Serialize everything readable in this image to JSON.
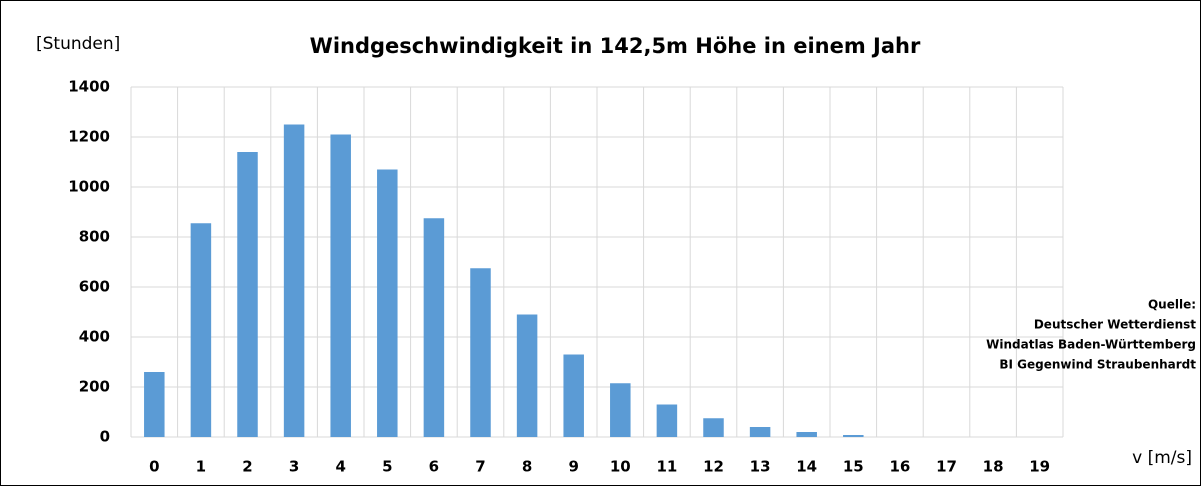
{
  "chart_data": {
    "type": "bar",
    "title": "Windgeschwindigkeit in 142,5m Höhe in einem Jahr",
    "y_label": "[Stunden]",
    "x_label": "v [m/s]",
    "annotations": [
      "Quelle:",
      "Deutscher Wetterdienst",
      "Windatlas Baden-Württemberg",
      "BI Gegenwind Straubenhardt"
    ],
    "categories": [
      "0",
      "1",
      "2",
      "3",
      "4",
      "5",
      "6",
      "7",
      "8",
      "9",
      "10",
      "11",
      "12",
      "13",
      "14",
      "15",
      "16",
      "17",
      "18",
      "19"
    ],
    "values": [
      260,
      855,
      1140,
      1250,
      1210,
      1070,
      875,
      675,
      490,
      330,
      215,
      130,
      75,
      40,
      20,
      8,
      0,
      0,
      0,
      0
    ],
    "color": "#5b9bd5",
    "ylim": [
      0,
      1400
    ],
    "yticks": [
      0,
      200,
      400,
      600,
      800,
      1000,
      1200,
      1400
    ],
    "grid": true
  }
}
